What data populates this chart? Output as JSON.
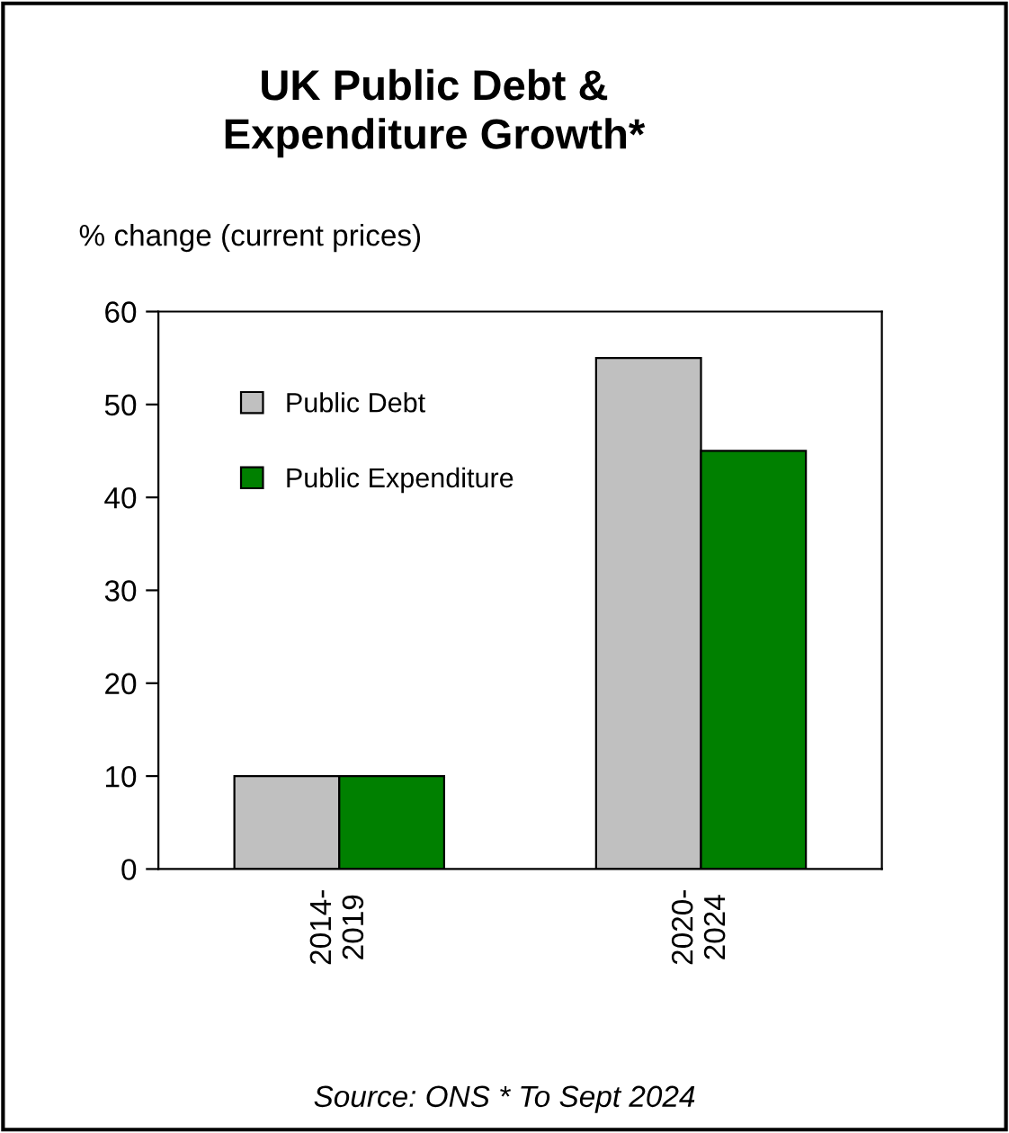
{
  "chart_data": {
    "type": "bar",
    "title": "UK Public Debt &\nExpenditure Growth*",
    "ylabel": "% change (current prices)",
    "categories": [
      "2014-\n2019",
      "2020-\n2024"
    ],
    "series": [
      {
        "name": "Public Debt",
        "color": "#c0c0c0",
        "values": [
          10,
          55
        ]
      },
      {
        "name": "Public Expenditure",
        "color": "#008000",
        "values": [
          10,
          45
        ]
      }
    ],
    "ylim": [
      0,
      60
    ],
    "yticks": [
      0,
      10,
      20,
      30,
      40,
      50,
      60
    ],
    "grid": false,
    "legend": "top left",
    "annotations": [
      "Source: ONS * To Sept 2024"
    ]
  }
}
